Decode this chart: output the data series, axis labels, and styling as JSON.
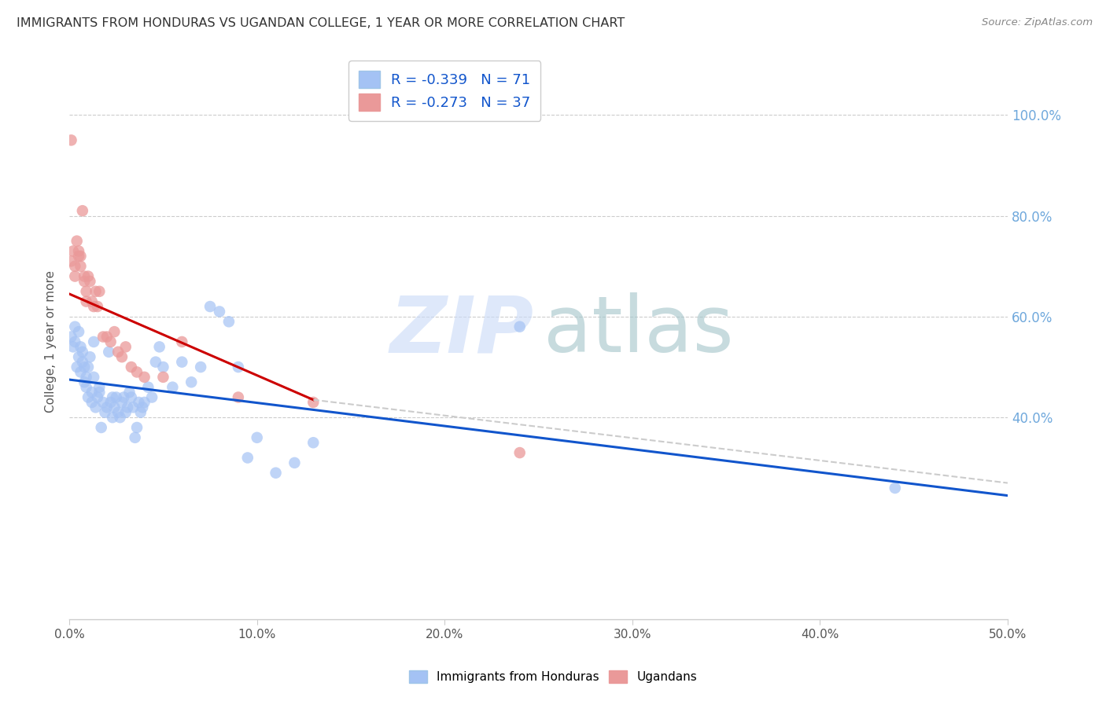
{
  "title": "IMMIGRANTS FROM HONDURAS VS UGANDAN COLLEGE, 1 YEAR OR MORE CORRELATION CHART",
  "source_text": "Source: ZipAtlas.com",
  "ylabel": "College, 1 year or more",
  "legend_label1": "Immigrants from Honduras",
  "legend_label2": "Ugandans",
  "r1": -0.339,
  "n1": 71,
  "r2": -0.273,
  "n2": 37,
  "color_blue": "#a4c2f4",
  "color_pink": "#ea9999",
  "color_line_blue": "#1155cc",
  "color_line_pink": "#cc0000",
  "color_dashed": "#cccccc",
  "blue_scatter_x": [
    0.001,
    0.002,
    0.003,
    0.003,
    0.004,
    0.005,
    0.005,
    0.006,
    0.006,
    0.007,
    0.007,
    0.008,
    0.008,
    0.009,
    0.009,
    0.01,
    0.01,
    0.011,
    0.012,
    0.012,
    0.013,
    0.013,
    0.014,
    0.015,
    0.016,
    0.016,
    0.017,
    0.018,
    0.019,
    0.02,
    0.021,
    0.022,
    0.023,
    0.023,
    0.024,
    0.025,
    0.026,
    0.027,
    0.028,
    0.029,
    0.03,
    0.031,
    0.032,
    0.033,
    0.034,
    0.035,
    0.036,
    0.037,
    0.038,
    0.039,
    0.04,
    0.042,
    0.044,
    0.046,
    0.048,
    0.05,
    0.055,
    0.06,
    0.065,
    0.07,
    0.075,
    0.08,
    0.085,
    0.09,
    0.095,
    0.1,
    0.11,
    0.12,
    0.13,
    0.24,
    0.44
  ],
  "blue_scatter_y": [
    0.56,
    0.54,
    0.58,
    0.55,
    0.5,
    0.52,
    0.57,
    0.49,
    0.54,
    0.51,
    0.53,
    0.47,
    0.5,
    0.48,
    0.46,
    0.44,
    0.5,
    0.52,
    0.45,
    0.43,
    0.55,
    0.48,
    0.42,
    0.44,
    0.45,
    0.46,
    0.38,
    0.43,
    0.41,
    0.42,
    0.53,
    0.43,
    0.44,
    0.4,
    0.42,
    0.44,
    0.41,
    0.4,
    0.43,
    0.44,
    0.41,
    0.42,
    0.45,
    0.44,
    0.42,
    0.36,
    0.38,
    0.43,
    0.41,
    0.42,
    0.43,
    0.46,
    0.44,
    0.51,
    0.54,
    0.5,
    0.46,
    0.51,
    0.47,
    0.5,
    0.62,
    0.61,
    0.59,
    0.5,
    0.32,
    0.36,
    0.29,
    0.31,
    0.35,
    0.58,
    0.26
  ],
  "pink_scatter_x": [
    0.001,
    0.001,
    0.002,
    0.003,
    0.003,
    0.004,
    0.005,
    0.005,
    0.006,
    0.006,
    0.007,
    0.008,
    0.008,
    0.009,
    0.009,
    0.01,
    0.011,
    0.012,
    0.013,
    0.014,
    0.015,
    0.016,
    0.018,
    0.02,
    0.022,
    0.024,
    0.026,
    0.028,
    0.03,
    0.033,
    0.036,
    0.04,
    0.05,
    0.06,
    0.09,
    0.13,
    0.24
  ],
  "pink_scatter_y": [
    0.95,
    0.71,
    0.73,
    0.7,
    0.68,
    0.75,
    0.73,
    0.72,
    0.7,
    0.72,
    0.81,
    0.68,
    0.67,
    0.65,
    0.63,
    0.68,
    0.67,
    0.63,
    0.62,
    0.65,
    0.62,
    0.65,
    0.56,
    0.56,
    0.55,
    0.57,
    0.53,
    0.52,
    0.54,
    0.5,
    0.49,
    0.48,
    0.48,
    0.55,
    0.44,
    0.43,
    0.33
  ],
  "xlim": [
    0.0,
    0.5
  ],
  "ylim": [
    0.0,
    1.1
  ],
  "yticks": [
    0.4,
    0.6,
    0.8,
    1.0
  ],
  "ytick_labels": [
    "40.0%",
    "60.0%",
    "80.0%",
    "100.0%"
  ],
  "xticks": [
    0.0,
    0.1,
    0.2,
    0.3,
    0.4,
    0.5
  ],
  "xtick_labels": [
    "0.0%",
    "10.0%",
    "20.0%",
    "30.0%",
    "40.0%",
    "50.0%"
  ],
  "blue_line_x": [
    0.0,
    0.5
  ],
  "blue_line_y": [
    0.475,
    0.245
  ],
  "pink_line_x": [
    0.0,
    0.13
  ],
  "pink_line_y": [
    0.645,
    0.435
  ],
  "dashed_line_x": [
    0.13,
    0.5
  ],
  "dashed_line_y": [
    0.435,
    0.27
  ],
  "watermark_zip_color": "#c9daf8",
  "watermark_atlas_color": "#a2c4c9"
}
